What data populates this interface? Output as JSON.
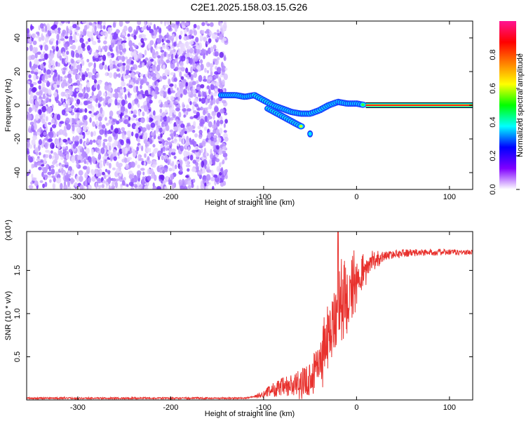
{
  "title": "C2E1.2025.158.03.15.G26",
  "chart_data": [
    {
      "type": "heatmap",
      "name": "spectrogram",
      "xlabel": "Height of straight line (km)",
      "ylabel": "Frequency (Hz)",
      "xlim": [
        -355,
        125
      ],
      "ylim": [
        -50,
        50
      ],
      "xticks": [
        -300,
        -200,
        -100,
        0,
        100
      ],
      "yticks": [
        -40,
        -20,
        0,
        20,
        40
      ],
      "xtick_labels": [
        "-300",
        "-200",
        "-100",
        "0",
        "100"
      ],
      "ytick_labels": [
        "-40",
        "-20",
        "0",
        "20",
        "40"
      ],
      "noise_region_x": [
        -355,
        -140
      ],
      "ridge": [
        {
          "x": -145,
          "y": 6
        },
        {
          "x": -130,
          "y": 6
        },
        {
          "x": -120,
          "y": 5
        },
        {
          "x": -110,
          "y": 6
        },
        {
          "x": -100,
          "y": 3
        },
        {
          "x": -90,
          "y": 0
        },
        {
          "x": -80,
          "y": -2
        },
        {
          "x": -70,
          "y": -4
        },
        {
          "x": -60,
          "y": -5
        },
        {
          "x": -50,
          "y": -5
        },
        {
          "x": -40,
          "y": -3
        },
        {
          "x": -30,
          "y": 0
        },
        {
          "x": -20,
          "y": 2
        },
        {
          "x": -10,
          "y": 1
        },
        {
          "x": 0,
          "y": 1
        },
        {
          "x": 10,
          "y": 0
        },
        {
          "x": 125,
          "y": 0
        }
      ],
      "branch": [
        {
          "x": -95,
          "y": -2
        },
        {
          "x": -85,
          "y": -5
        },
        {
          "x": -75,
          "y": -8
        },
        {
          "x": -65,
          "y": -11
        },
        {
          "x": -58,
          "y": -13
        }
      ],
      "isolated": [
        {
          "x": -50,
          "y": -17
        }
      ],
      "colorbar": {
        "label": "Normalized spectral amplitude",
        "range": [
          0,
          1
        ],
        "ticks": [
          0.0,
          0.2,
          0.4,
          0.6,
          0.8
        ],
        "tick_labels": [
          "0.0",
          "0.2",
          "0.4",
          "0.6",
          "0.8"
        ],
        "colors": [
          "#ffffff",
          "#8000ff",
          "#0000ff",
          "#00ffff",
          "#00ff00",
          "#ffff00",
          "#ff8000",
          "#ff0000",
          "#ff1493"
        ]
      }
    },
    {
      "type": "line",
      "name": "snr",
      "xlabel": "Height of straight line (km)",
      "ylabel": "SNR (10 * v/v)",
      "multiplier_label": "(x10⁴)",
      "xlim": [
        -355,
        125
      ],
      "ylim": [
        0,
        1.95
      ],
      "xticks": [
        -300,
        -200,
        -100,
        0,
        100
      ],
      "yticks": [
        0.5,
        1.0,
        1.5
      ],
      "xtick_labels": [
        "-300",
        "-200",
        "-100",
        "0",
        "100"
      ],
      "ytick_labels": [
        "0.5",
        "1.0",
        "1.5"
      ],
      "color": "#e8322e",
      "envelope": [
        {
          "x": -355,
          "y": 0.02
        },
        {
          "x": -120,
          "y": 0.02
        },
        {
          "x": -105,
          "y": 0.05
        },
        {
          "x": -90,
          "y": 0.12
        },
        {
          "x": -75,
          "y": 0.15
        },
        {
          "x": -60,
          "y": 0.18
        },
        {
          "x": -50,
          "y": 0.25
        },
        {
          "x": -40,
          "y": 0.45
        },
        {
          "x": -30,
          "y": 0.75
        },
        {
          "x": -22,
          "y": 1.0
        },
        {
          "x": -15,
          "y": 1.15
        },
        {
          "x": -5,
          "y": 1.3
        },
        {
          "x": 5,
          "y": 1.45
        },
        {
          "x": 15,
          "y": 1.58
        },
        {
          "x": 30,
          "y": 1.67
        },
        {
          "x": 50,
          "y": 1.7
        },
        {
          "x": 80,
          "y": 1.71
        },
        {
          "x": 125,
          "y": 1.71
        }
      ],
      "noise_amplitude": [
        {
          "x": -355,
          "y": 0.01
        },
        {
          "x": -110,
          "y": 0.01
        },
        {
          "x": -95,
          "y": 0.06
        },
        {
          "x": -80,
          "y": 0.12
        },
        {
          "x": -50,
          "y": 0.2
        },
        {
          "x": -35,
          "y": 0.45
        },
        {
          "x": -20,
          "y": 0.55
        },
        {
          "x": -5,
          "y": 0.45
        },
        {
          "x": 10,
          "y": 0.2
        },
        {
          "x": 30,
          "y": 0.05
        },
        {
          "x": 125,
          "y": 0.03
        }
      ],
      "peak": {
        "x": -20,
        "y": 1.95
      }
    }
  ]
}
